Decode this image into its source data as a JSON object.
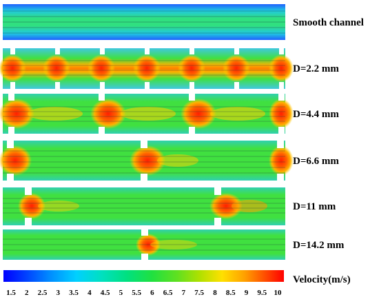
{
  "panels": [
    {
      "label": "Smooth channel"
    },
    {
      "label": "D=2.2 mm"
    },
    {
      "label": "D=4.4 mm"
    },
    {
      "label": "D=6.6 mm"
    },
    {
      "label": "D=11 mm"
    },
    {
      "label": "D=14.2 mm"
    }
  ],
  "colorbar": {
    "title": "Velocity(m/s)",
    "ticks": [
      "1.5",
      "2",
      "2.5",
      "3",
      "3.5",
      "4",
      "4.5",
      "5",
      "5.5",
      "6",
      "6.5",
      "7",
      "7.5",
      "8",
      "8.5",
      "9",
      "9.5",
      "10"
    ],
    "colors": [
      "#0000ff",
      "#0055ff",
      "#00aaff",
      "#00e0e0",
      "#00e0a0",
      "#20e060",
      "#40e040",
      "#80e020",
      "#c0e000",
      "#ffe000",
      "#ffa000",
      "#ff6000",
      "#ff0000"
    ]
  }
}
